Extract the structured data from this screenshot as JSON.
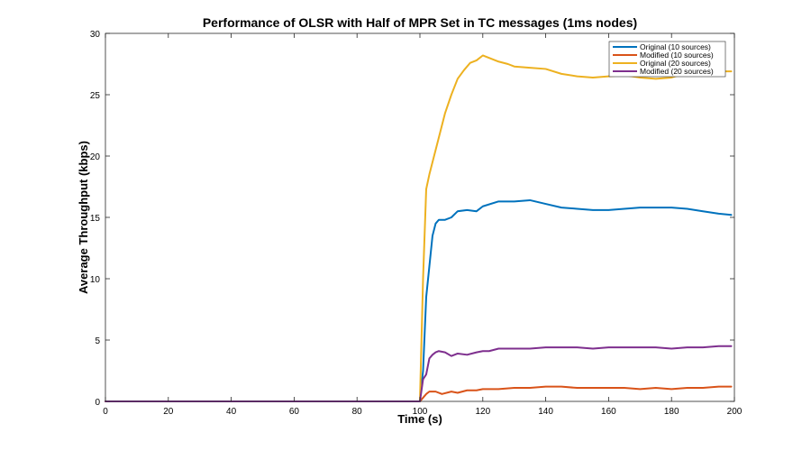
{
  "chart_data": {
    "type": "line",
    "title": "Performance of OLSR with Half of MPR Set in TC messages (1ms nodes)",
    "xlabel": "Time (s)",
    "ylabel": "Average Throughput (kbps)",
    "xlim": [
      0,
      200
    ],
    "ylim": [
      0,
      30
    ],
    "xticks": [
      0,
      20,
      40,
      60,
      80,
      100,
      120,
      140,
      160,
      180,
      200
    ],
    "yticks": [
      0,
      5,
      10,
      15,
      20,
      25,
      30
    ],
    "grid": false,
    "legend_position": "top-right",
    "series": [
      {
        "name": "Original (10 sources)",
        "color": "#0072BD",
        "x": [
          0,
          100,
          101,
          102,
          103,
          104,
          105,
          106,
          108,
          110,
          112,
          115,
          118,
          120,
          125,
          130,
          135,
          140,
          145,
          150,
          155,
          160,
          165,
          170,
          175,
          180,
          185,
          190,
          195,
          199
        ],
        "y": [
          0,
          0,
          2.5,
          8.5,
          11.0,
          13.5,
          14.5,
          14.8,
          14.8,
          15.0,
          15.5,
          15.6,
          15.5,
          15.9,
          16.3,
          16.3,
          16.4,
          16.1,
          15.8,
          15.7,
          15.6,
          15.6,
          15.7,
          15.8,
          15.8,
          15.8,
          15.7,
          15.5,
          15.3,
          15.2
        ]
      },
      {
        "name": "Modified (10 sources)",
        "color": "#D95319",
        "x": [
          0,
          100,
          101,
          102,
          103,
          105,
          107,
          110,
          112,
          115,
          118,
          120,
          125,
          130,
          135,
          140,
          145,
          150,
          155,
          160,
          165,
          170,
          175,
          180,
          185,
          190,
          195,
          199
        ],
        "y": [
          0,
          0,
          0.3,
          0.6,
          0.8,
          0.8,
          0.6,
          0.8,
          0.7,
          0.9,
          0.9,
          1.0,
          1.0,
          1.1,
          1.1,
          1.2,
          1.2,
          1.1,
          1.1,
          1.1,
          1.1,
          1.0,
          1.1,
          1.0,
          1.1,
          1.1,
          1.2,
          1.2
        ]
      },
      {
        "name": "Original (20 sources)",
        "color": "#EDB120",
        "x": [
          0,
          100,
          101,
          102,
          103,
          104,
          105,
          106,
          108,
          110,
          112,
          114,
          116,
          118,
          120,
          122,
          125,
          128,
          130,
          135,
          140,
          145,
          150,
          155,
          160,
          165,
          170,
          175,
          180,
          185,
          190,
          195,
          199
        ],
        "y": [
          0,
          0,
          10.0,
          17.3,
          18.5,
          19.5,
          20.5,
          21.5,
          23.5,
          25.0,
          26.3,
          27.0,
          27.6,
          27.8,
          28.2,
          28.0,
          27.7,
          27.5,
          27.3,
          27.2,
          27.1,
          26.7,
          26.5,
          26.4,
          26.5,
          26.6,
          26.4,
          26.3,
          26.4,
          26.8,
          26.9,
          26.9,
          26.9
        ]
      },
      {
        "name": "Modified (20 sources)",
        "color": "#7E2F8E",
        "x": [
          0,
          100,
          101,
          102,
          103,
          104,
          105,
          106,
          108,
          110,
          112,
          115,
          118,
          120,
          122,
          125,
          130,
          135,
          140,
          145,
          150,
          155,
          160,
          165,
          170,
          175,
          180,
          185,
          190,
          195,
          199
        ],
        "y": [
          0,
          0,
          1.8,
          2.2,
          3.5,
          3.8,
          4.0,
          4.1,
          4.0,
          3.7,
          3.9,
          3.8,
          4.0,
          4.1,
          4.1,
          4.3,
          4.3,
          4.3,
          4.4,
          4.4,
          4.4,
          4.3,
          4.4,
          4.4,
          4.4,
          4.4,
          4.3,
          4.4,
          4.4,
          4.5,
          4.5
        ]
      }
    ]
  }
}
